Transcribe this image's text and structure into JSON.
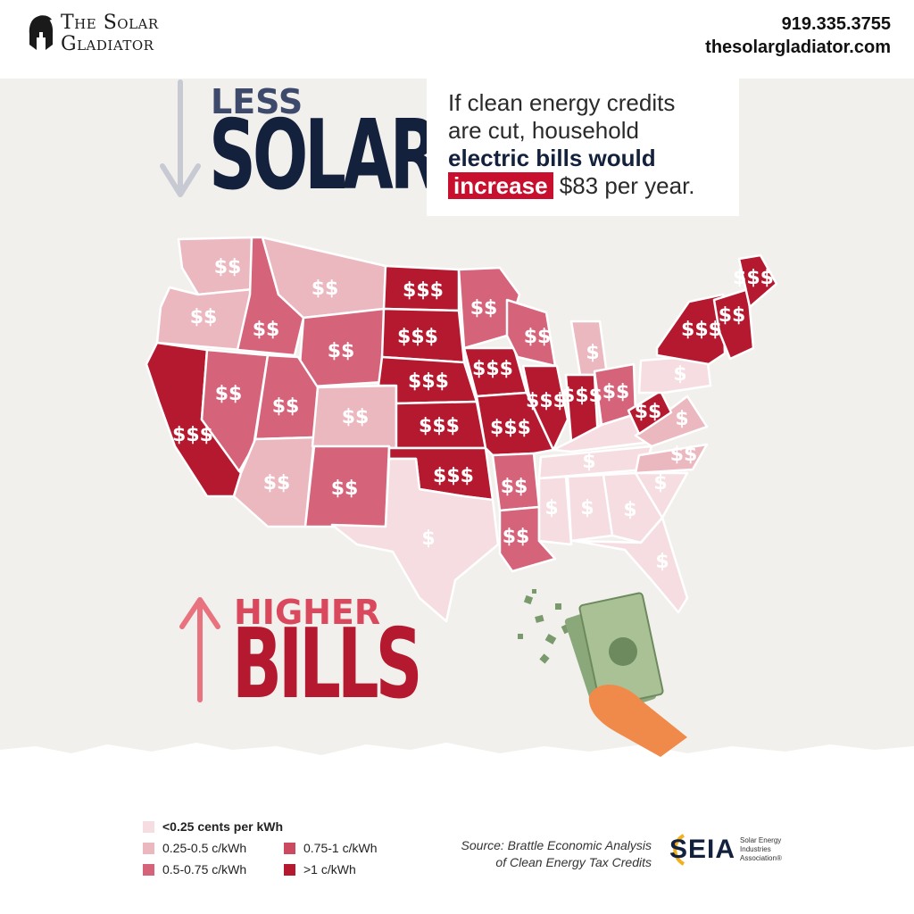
{
  "brand": {
    "line1": "The Solar",
    "line2": "Gladiator",
    "logo_icon": "spartan-helmet-icon"
  },
  "contact": {
    "phone": "919.335.3755",
    "website": "thesolargladiator.com"
  },
  "headline_top": {
    "small": "LESS",
    "big": "SOLAR"
  },
  "headline_bottom": {
    "small": "HIGHER",
    "big": "BILLS"
  },
  "callout": {
    "line1": "If clean energy credits",
    "line2": "are cut, household",
    "line3_bold": "electric bills would",
    "highlight": "increase",
    "rest": " $83 per year."
  },
  "map_symbols": {
    "tier1": "$",
    "tier2": "$$",
    "tier3": "$$$"
  },
  "legend": [
    {
      "label_bold": "<0.25 cents per kWh",
      "label": "",
      "color": "#f5dde1"
    },
    {
      "label_bold": "",
      "label": "0.25-0.5 c/kWh",
      "color": "#ebb8c0"
    },
    {
      "label_bold": "",
      "label": "0.5-0.75 c/kWh",
      "color": "#d5637a"
    },
    {
      "label_bold": "",
      "label": "0.75-1 c/kWh",
      "color": "#cc4a60"
    },
    {
      "label_bold": "",
      "label": ">1 c/kWh",
      "color": "#b5192f"
    }
  ],
  "source": {
    "line1": "Source: Brattle Economic Analysis",
    "line2": "of Clean Energy Tax Credits"
  },
  "seia": {
    "word": "SEIA",
    "sub1": "Solar Energy",
    "sub2": "Industries",
    "sub3": "Association®"
  },
  "colors": {
    "tier1": "#f5dde1",
    "tier2": "#ebb8c0",
    "tier3": "#d5637a",
    "tier4": "#b5192f",
    "navy": "#14213d"
  }
}
